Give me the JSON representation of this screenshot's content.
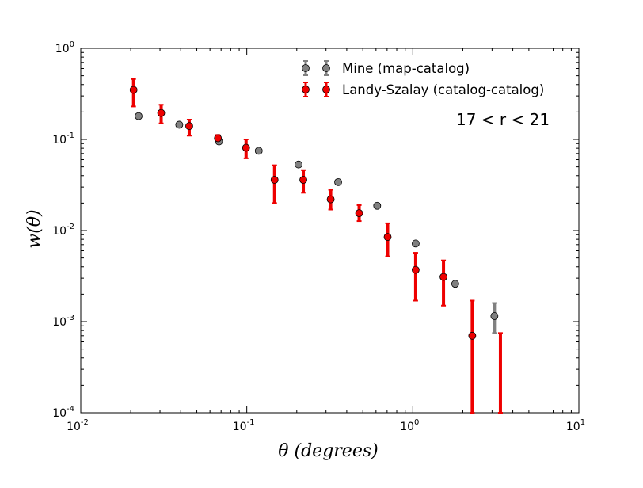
{
  "chart_data": {
    "type": "scatter",
    "x_scale": "log",
    "y_scale": "log",
    "xlim": [
      0.01,
      10
    ],
    "ylim": [
      0.0001,
      1
    ],
    "xlabel": "θ (degrees)",
    "ylabel": "w(θ)",
    "annotation": "17 < r < 21",
    "legend_position": "top-right",
    "x_ticks": [
      0.01,
      0.1,
      1,
      10
    ],
    "x_tick_labels": [
      {
        "base": "10",
        "exp": "-2"
      },
      {
        "base": "10",
        "exp": "-1"
      },
      {
        "base": "10",
        "exp": "0"
      },
      {
        "base": "10",
        "exp": "1"
      }
    ],
    "y_ticks": [
      0.0001,
      0.001,
      0.01,
      0.1,
      1
    ],
    "y_tick_labels": [
      {
        "base": "10",
        "exp": "-4"
      },
      {
        "base": "10",
        "exp": "-3"
      },
      {
        "base": "10",
        "exp": "-2"
      },
      {
        "base": "10",
        "exp": "-1"
      },
      {
        "base": "10",
        "exp": "0"
      }
    ],
    "series": [
      {
        "name": "Mine (map-catalog)",
        "color": "#808080",
        "points": [
          {
            "x": 0.0223,
            "y": 0.18
          },
          {
            "x": 0.0392,
            "y": 0.145
          },
          {
            "x": 0.068,
            "y": 0.095
          },
          {
            "x": 0.118,
            "y": 0.075
          },
          {
            "x": 0.205,
            "y": 0.053
          },
          {
            "x": 0.355,
            "y": 0.034
          },
          {
            "x": 0.61,
            "y": 0.0187
          },
          {
            "x": 1.04,
            "y": 0.0072
          },
          {
            "x": 1.8,
            "y": 0.0026
          },
          {
            "x": 3.1,
            "y": 0.00115,
            "ylo": 0.00075,
            "yhi": 0.0016
          }
        ]
      },
      {
        "name": "Landy-Szalay (catalog-catalog)",
        "color": "#ee0000",
        "points": [
          {
            "x": 0.0208,
            "y": 0.35,
            "ylo": 0.23,
            "yhi": 0.46
          },
          {
            "x": 0.0305,
            "y": 0.195,
            "ylo": 0.15,
            "yhi": 0.24
          },
          {
            "x": 0.045,
            "y": 0.14,
            "ylo": 0.11,
            "yhi": 0.165
          },
          {
            "x": 0.067,
            "y": 0.103,
            "ylo": 0.093,
            "yhi": 0.112
          },
          {
            "x": 0.099,
            "y": 0.081,
            "ylo": 0.062,
            "yhi": 0.1
          },
          {
            "x": 0.147,
            "y": 0.036,
            "ylo": 0.02,
            "yhi": 0.052
          },
          {
            "x": 0.219,
            "y": 0.036,
            "ylo": 0.026,
            "yhi": 0.046
          },
          {
            "x": 0.32,
            "y": 0.022,
            "ylo": 0.017,
            "yhi": 0.028
          },
          {
            "x": 0.475,
            "y": 0.0155,
            "ylo": 0.0127,
            "yhi": 0.019
          },
          {
            "x": 0.705,
            "y": 0.0085,
            "ylo": 0.0052,
            "yhi": 0.012
          },
          {
            "x": 1.04,
            "y": 0.0037,
            "ylo": 0.0017,
            "yhi": 0.0057
          },
          {
            "x": 1.53,
            "y": 0.0031,
            "ylo": 0.0015,
            "yhi": 0.0047
          },
          {
            "x": 2.28,
            "y": 0.0007,
            "ylo": 0.0001,
            "yhi": 0.0017
          },
          {
            "x": 3.37,
            "y": null,
            "ylo": 0.0001,
            "yhi": 0.00075
          }
        ]
      }
    ]
  }
}
